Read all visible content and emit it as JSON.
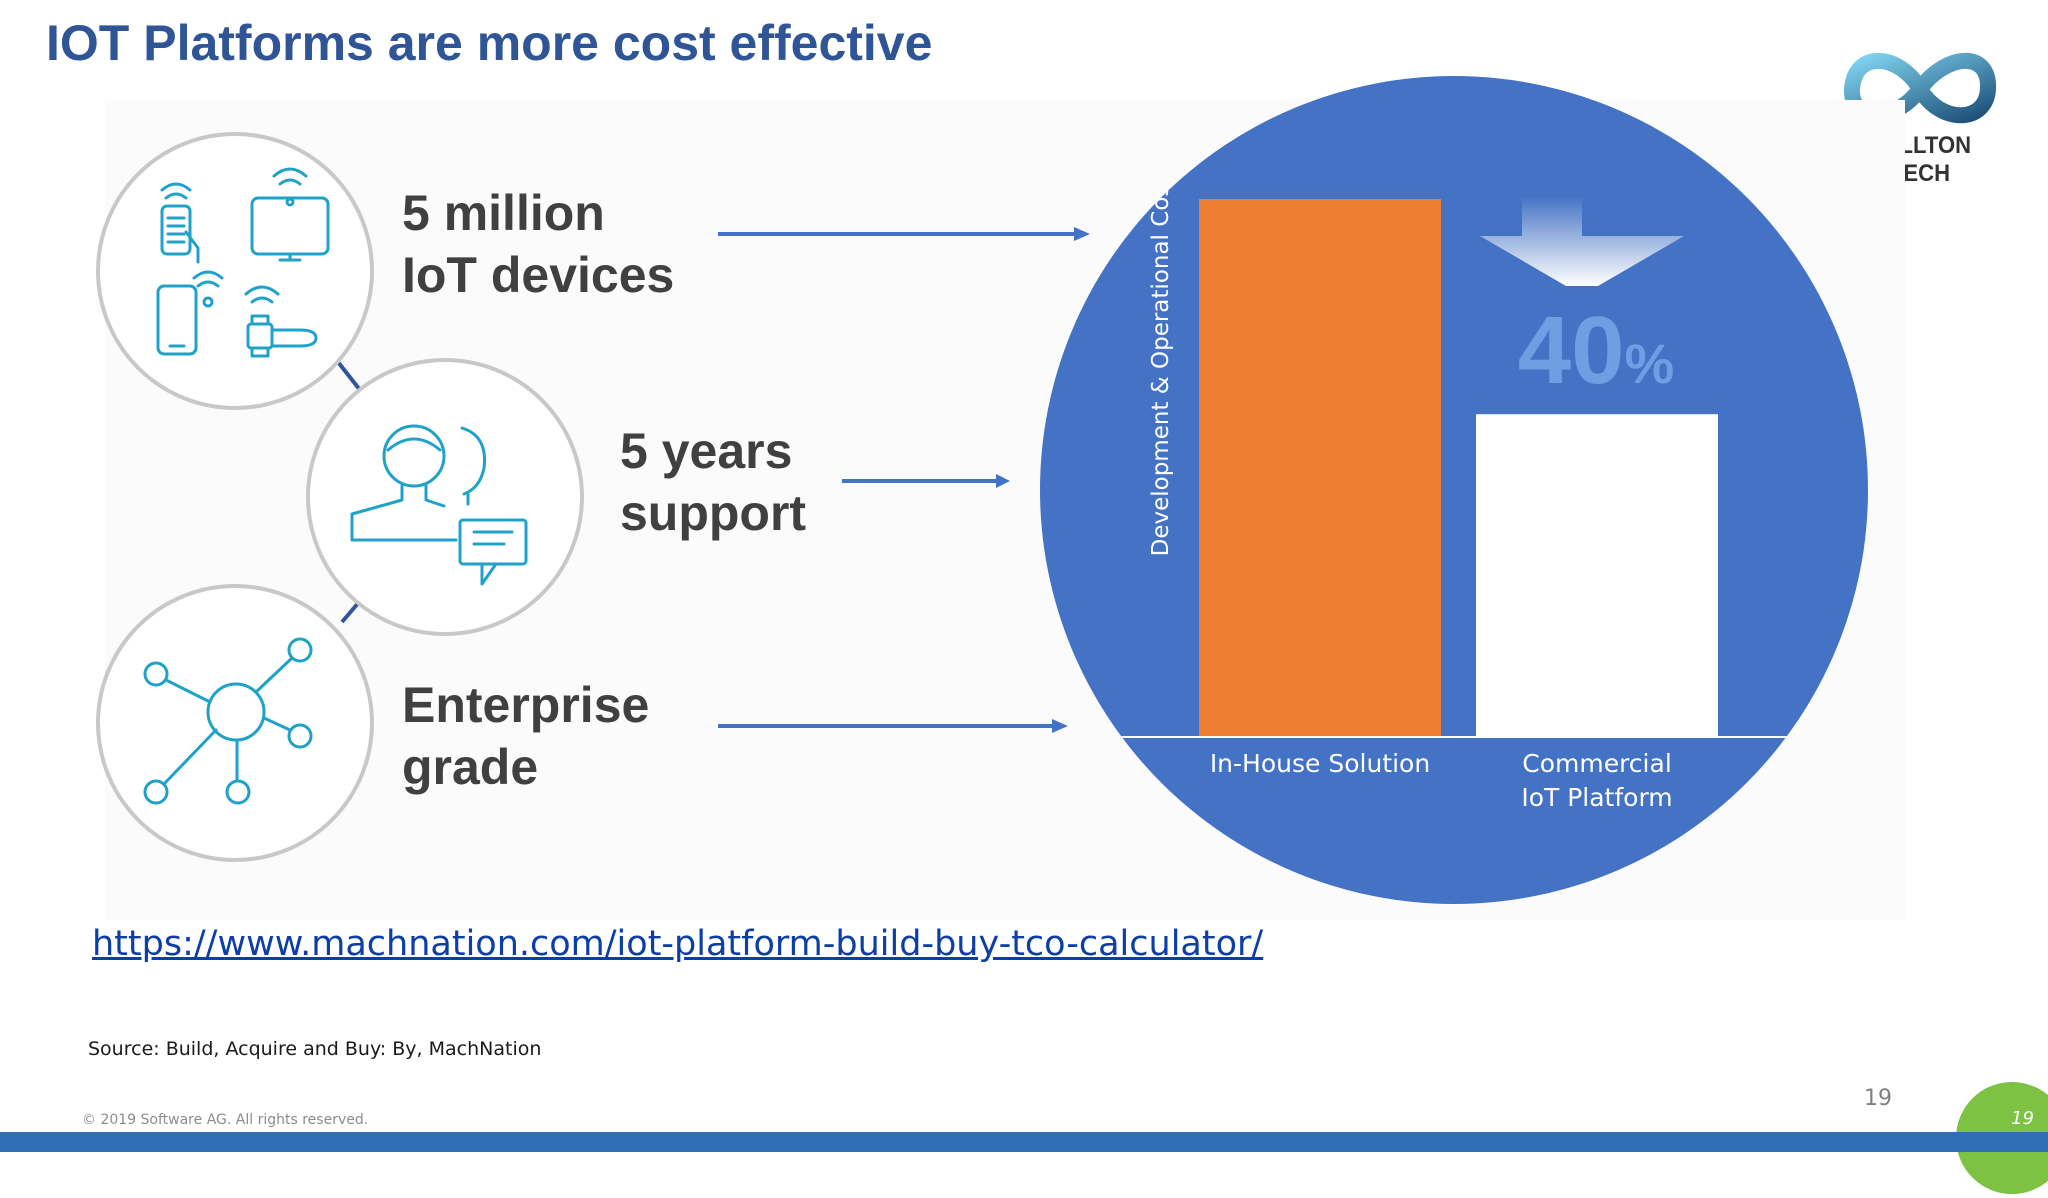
{
  "slide": {
    "title": "IOT Platforms are more cost effective",
    "logo_text": "KELLTON TECH",
    "features": [
      {
        "line1": "5 million",
        "line2": "IoT devices",
        "icon": "devices-icon"
      },
      {
        "line1": "5 years",
        "line2": "support",
        "icon": "support-people-icon"
      },
      {
        "line1": "Enterprise",
        "line2": "grade",
        "icon": "network-icon"
      }
    ],
    "source_link": "https://www.machnation.com/iot-platform-build-buy-tco-calculator/",
    "source_note": "Source: Build, Acquire and Buy: By, MachNation",
    "copyright": "© 2019 Software AG. All rights reserved.",
    "page_number": "19",
    "page_badge": "19"
  },
  "colors": {
    "title": "#2f5597",
    "disc": "#4472c4",
    "bar_in_house": "#ed7d31",
    "bar_commercial": "#ffffff",
    "icons": "#1fa1c8",
    "badge": "#7dc242"
  },
  "chart_data": {
    "type": "bar",
    "ylabel": "Development & Operational Cost",
    "categories": [
      "In-House Solution",
      "Commercial\nIoT Platform"
    ],
    "category_lines": [
      [
        "In-House Solution"
      ],
      [
        "Commercial",
        "IoT Platform"
      ]
    ],
    "values": [
      100,
      60
    ],
    "annotation": {
      "number": "40",
      "unit": "%",
      "icon": "down-arrow-icon"
    }
  }
}
